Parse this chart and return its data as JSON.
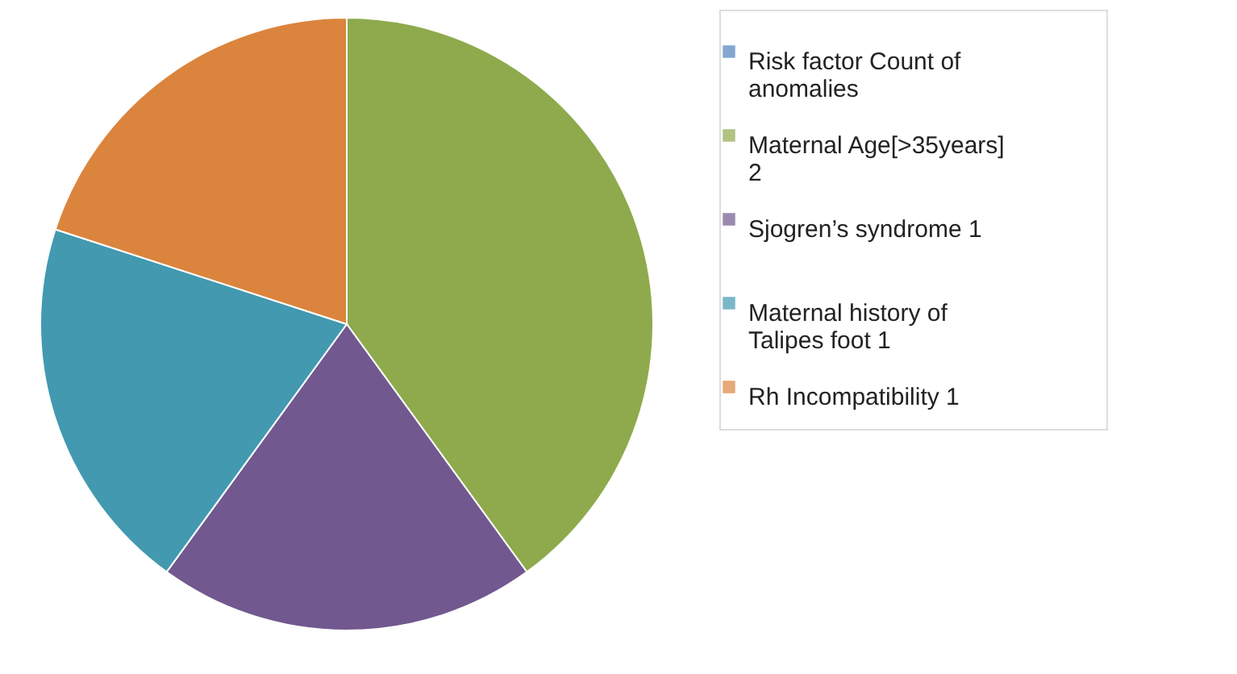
{
  "chart_data": {
    "type": "pie",
    "categories": [
      "Risk factor Count of anomalies",
      "Maternal Age[>35years] 2",
      "Sjogren’s syndrome 1",
      "Maternal history of Talipes foot 1",
      "Rh Incompatibility 1"
    ],
    "values": [
      0,
      2,
      1,
      1,
      1
    ],
    "colors": [
      "#4f81bd",
      "#8eaa4c",
      "#71588f",
      "#4299b0",
      "#db843d"
    ],
    "legend": "right"
  }
}
